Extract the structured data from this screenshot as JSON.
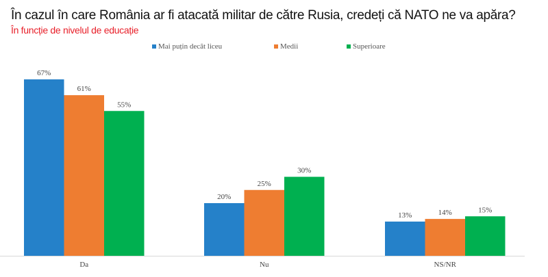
{
  "chart_data": {
    "type": "bar",
    "title": "În cazul în care România ar fi atacată militar de către Rusia, credeți că NATO ne va apăra?",
    "subtitle": "În funcție de nivelul de educație",
    "categories": [
      "Da",
      "Nu",
      "NS/NR"
    ],
    "series": [
      {
        "name": "Mai puțin decât liceu",
        "color": "#2581c9",
        "values": [
          67,
          20,
          13
        ]
      },
      {
        "name": "Medii",
        "color": "#ee7d31",
        "values": [
          61,
          25,
          14
        ]
      },
      {
        "name": "Superioare",
        "color": "#00b050",
        "values": [
          55,
          30,
          15
        ]
      }
    ],
    "value_suffix": "%",
    "ylim": [
      0,
      70
    ],
    "legend": "top-center",
    "grid": false
  }
}
